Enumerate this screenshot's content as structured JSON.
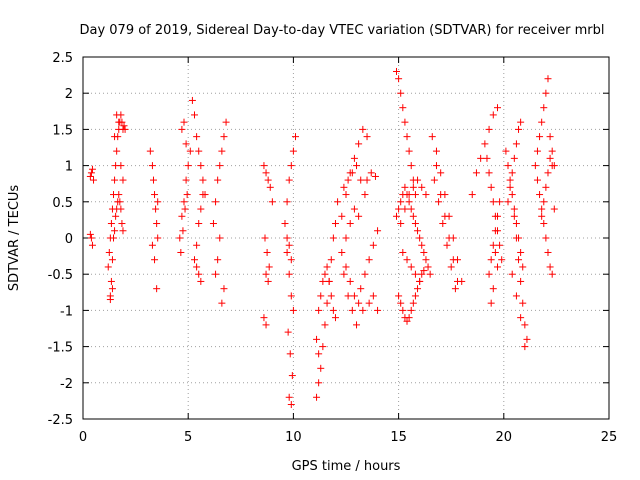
{
  "chart_data": {
    "type": "scatter",
    "title": "Day 079 of 2019, Sidereal Day-to-day VTEC variation (SDTVAR) for receiver mrbl",
    "xlabel": "GPS time / hours",
    "ylabel": "SDTVAR / TECUs",
    "xlim": [
      0,
      25
    ],
    "ylim": [
      -2.5,
      2.5
    ],
    "xticks": [
      0,
      5,
      10,
      15,
      20,
      25
    ],
    "xtick_labels": [
      "0",
      "5",
      "10",
      "15",
      "20",
      "25"
    ],
    "yticks": [
      -2.5,
      -2,
      -1.5,
      -1,
      -0.5,
      0,
      0.5,
      1,
      1.5,
      2,
      2.5
    ],
    "ytick_labels": [
      "-2.5",
      "-2",
      "-1.5",
      "-1",
      "-0.5",
      "0",
      "0.5",
      "1",
      "1.5",
      "2",
      "2.5"
    ],
    "grid": true,
    "marker": "+",
    "color": "#ff0000",
    "x": [
      0.35,
      0.4,
      0.45,
      0.5,
      0.35,
      0.4,
      0.45,
      1.2,
      1.25,
      1.3,
      1.35,
      1.4,
      1.45,
      1.5,
      1.55,
      1.6,
      1.65,
      1.7,
      1.75,
      1.8,
      1.85,
      1.9,
      1.95,
      2.0,
      1.3,
      1.35,
      1.4,
      1.45,
      1.5,
      1.55,
      1.6,
      1.65,
      1.7,
      1.75,
      1.8,
      1.85,
      1.9,
      1.3,
      1.4,
      1.5,
      1.6,
      1.7,
      1.8,
      1.9,
      3.2,
      3.3,
      3.35,
      3.4,
      3.45,
      3.5,
      3.55,
      3.3,
      3.4,
      3.5,
      3.55,
      4.6,
      4.7,
      4.8,
      4.9,
      5.0,
      5.1,
      4.65,
      4.75,
      4.85,
      4.95,
      4.7,
      4.8,
      4.9,
      5.2,
      5.3,
      5.4,
      5.5,
      5.6,
      5.7,
      5.8,
      5.3,
      5.4,
      5.5,
      5.6,
      5.7,
      5.4,
      5.5,
      5.6,
      6.2,
      6.3,
      6.4,
      6.5,
      6.6,
      6.7,
      6.8,
      6.3,
      6.4,
      6.5,
      6.6,
      6.7,
      8.6,
      8.7,
      8.8,
      8.9,
      9.0,
      8.65,
      8.75,
      8.85,
      8.7,
      8.8,
      8.6,
      8.7,
      9.6,
      9.7,
      9.8,
      9.9,
      10.0,
      10.1,
      9.7,
      9.8,
      9.9,
      10.0,
      9.75,
      9.85,
      9.95,
      9.8,
      9.9,
      9.7,
      9.8,
      9.9,
      11.1,
      11.2,
      11.3,
      11.4,
      11.5,
      11.6,
      11.7,
      11.8,
      11.9,
      12.0,
      11.2,
      11.3,
      11.4,
      11.5,
      11.6,
      11.7,
      11.8,
      11.9,
      12.0,
      11.1,
      11.2,
      12.1,
      12.3,
      12.5,
      12.7,
      12.9,
      13.1,
      13.3,
      13.5,
      12.4,
      12.6,
      12.8,
      13.0,
      13.2,
      13.4,
      12.3,
      12.5,
      12.7,
      12.9,
      13.1,
      13.3,
      12.5,
      12.7,
      12.9,
      13.1,
      12.4,
      12.6,
      12.8,
      13.0,
      13.2,
      13.4,
      13.6,
      13.8,
      14.0,
      13.5,
      13.7,
      13.9,
      13.6,
      13.8,
      14.0,
      14.9,
      15.0,
      15.1,
      15.2,
      15.3,
      15.4,
      15.5,
      15.6,
      15.7,
      15.8,
      14.9,
      15.0,
      15.1,
      15.2,
      15.3,
      15.4,
      15.5,
      15.6,
      15.7,
      15.8,
      15.9,
      16.0,
      16.1,
      16.2,
      16.3,
      16.4,
      16.5,
      15.0,
      15.1,
      15.2,
      15.3,
      15.4,
      15.5,
      15.6,
      15.7,
      15.8,
      15.9,
      16.0,
      16.1,
      16.2,
      15.1,
      15.3,
      15.5,
      15.7,
      15.9,
      16.1,
      16.3,
      15.2,
      15.4,
      15.6,
      15.8,
      16.0,
      16.6,
      16.8,
      17.0,
      17.2,
      17.4,
      17.6,
      17.8,
      16.7,
      16.9,
      17.1,
      17.3,
      17.5,
      17.7,
      16.8,
      17.0,
      17.2,
      17.4,
      17.6,
      17.8,
      18.0,
      18.5,
      18.7,
      18.9,
      19.1,
      19.3,
      19.5,
      19.7,
      19.2,
      19.3,
      19.4,
      19.5,
      19.6,
      19.7,
      19.8,
      19.9,
      19.3,
      19.4,
      19.5,
      19.6,
      19.7,
      19.8,
      19.4,
      19.5,
      19.6,
      19.7,
      20.1,
      20.2,
      20.3,
      20.4,
      20.5,
      20.6,
      20.7,
      20.8,
      20.9,
      20.2,
      20.3,
      20.4,
      20.5,
      20.6,
      20.7,
      20.8,
      20.5,
      20.6,
      20.7,
      20.8,
      20.9,
      21.0,
      21.1,
      20.4,
      20.6,
      20.8,
      21.0,
      21.5,
      21.6,
      21.7,
      21.8,
      21.9,
      22.0,
      22.1,
      22.2,
      22.3,
      22.4,
      21.6,
      21.7,
      21.8,
      21.9,
      22.0,
      22.1,
      22.2,
      22.3,
      21.8,
      21.9,
      22.0,
      22.1,
      22.2,
      22.3,
      22.4
    ],
    "y": [
      0.85,
      0.9,
      0.95,
      0.8,
      0.05,
      0.0,
      -0.1,
      -0.4,
      -0.2,
      0.0,
      0.2,
      0.4,
      0.6,
      0.8,
      1.0,
      1.2,
      1.4,
      1.5,
      1.6,
      1.7,
      1.6,
      1.5,
      1.55,
      1.5,
      -0.8,
      -0.6,
      -0.3,
      0.0,
      0.1,
      0.3,
      0.4,
      0.5,
      0.6,
      0.5,
      0.4,
      0.2,
      0.1,
      -0.85,
      -0.7,
      1.4,
      1.7,
      1.6,
      1.0,
      0.8,
      1.2,
      1.0,
      0.8,
      0.6,
      0.4,
      0.2,
      0.0,
      -0.1,
      -0.3,
      -0.7,
      0.5,
      0.0,
      0.3,
      0.5,
      0.8,
      1.0,
      1.2,
      -0.2,
      0.1,
      0.4,
      0.6,
      1.5,
      1.6,
      1.3,
      1.9,
      1.7,
      1.4,
      1.2,
      1.0,
      0.8,
      0.6,
      -0.3,
      -0.1,
      0.2,
      0.4,
      0.6,
      -0.4,
      -0.5,
      -0.6,
      0.2,
      0.5,
      0.8,
      1.0,
      1.2,
      1.4,
      1.6,
      -0.5,
      -0.3,
      0.0,
      -0.9,
      -0.7,
      1.0,
      0.9,
      0.8,
      0.7,
      0.5,
      0.0,
      -0.2,
      -0.4,
      -0.5,
      -0.6,
      -1.1,
      -1.2,
      0.2,
      0.5,
      0.8,
      1.0,
      1.2,
      1.4,
      -0.2,
      -0.5,
      -0.8,
      -1.0,
      -1.3,
      -1.6,
      -1.9,
      -2.2,
      -2.3,
      0.0,
      -0.1,
      -0.3,
      -2.2,
      -2.0,
      -1.8,
      -1.5,
      -1.2,
      -0.9,
      -0.6,
      -0.3,
      0.0,
      0.2,
      -1.0,
      -0.8,
      -0.6,
      -0.5,
      -0.4,
      -0.6,
      -0.8,
      -1.0,
      -1.1,
      -1.4,
      -1.6,
      0.5,
      0.3,
      0.6,
      0.9,
      1.1,
      1.3,
      1.5,
      1.4,
      0.7,
      0.8,
      0.9,
      1.0,
      0.8,
      0.6,
      -0.2,
      -0.4,
      -0.6,
      -0.8,
      -0.9,
      -1.0,
      0.0,
      0.2,
      0.4,
      0.3,
      -0.5,
      -0.8,
      -1.0,
      -1.2,
      -0.7,
      -0.5,
      -0.3,
      -0.1,
      0.1,
      0.8,
      0.9,
      0.85,
      -0.9,
      -0.8,
      -1.0,
      2.3,
      2.2,
      2.0,
      1.8,
      1.6,
      1.4,
      1.2,
      1.0,
      0.8,
      0.6,
      0.3,
      0.4,
      0.5,
      0.6,
      0.7,
      0.6,
      0.5,
      0.4,
      0.3,
      0.2,
      0.1,
      0.0,
      -0.1,
      -0.2,
      -0.3,
      -0.4,
      -0.5,
      -0.8,
      -0.9,
      -1.0,
      -1.1,
      -1.15,
      -1.1,
      -1.0,
      -0.9,
      -0.8,
      -0.7,
      -0.6,
      -0.5,
      -0.45,
      0.2,
      0.4,
      0.6,
      0.7,
      0.8,
      0.7,
      0.6,
      -0.2,
      -0.3,
      -0.4,
      -0.5,
      -0.6,
      1.4,
      1.0,
      0.6,
      0.3,
      0.0,
      -0.3,
      -0.6,
      0.8,
      0.5,
      0.2,
      -0.1,
      -0.4,
      -0.7,
      1.2,
      0.9,
      0.6,
      0.3,
      0.0,
      -0.3,
      -0.6,
      0.6,
      0.9,
      1.1,
      1.3,
      1.5,
      1.7,
      1.8,
      1.1,
      0.9,
      0.7,
      0.5,
      0.3,
      0.1,
      -0.1,
      -0.3,
      -0.5,
      -0.3,
      -0.1,
      0.1,
      0.3,
      0.5,
      -0.9,
      -0.7,
      -0.2,
      -0.4,
      1.2,
      1.0,
      0.8,
      0.6,
      0.4,
      0.2,
      0.0,
      -0.2,
      -0.4,
      0.5,
      0.7,
      0.9,
      1.1,
      1.3,
      1.5,
      1.6,
      0.3,
      0.0,
      -0.3,
      -0.6,
      -0.9,
      -1.2,
      -1.4,
      -0.5,
      -0.8,
      -1.1,
      -1.5,
      1.0,
      1.2,
      1.4,
      1.6,
      1.8,
      2.0,
      2.2,
      1.4,
      1.2,
      1.0,
      0.8,
      0.6,
      0.4,
      0.2,
      0.0,
      -0.2,
      -0.4,
      -0.5,
      0.3,
      0.5,
      0.7,
      0.9,
      1.1,
      1.0,
      0.4
    ]
  }
}
